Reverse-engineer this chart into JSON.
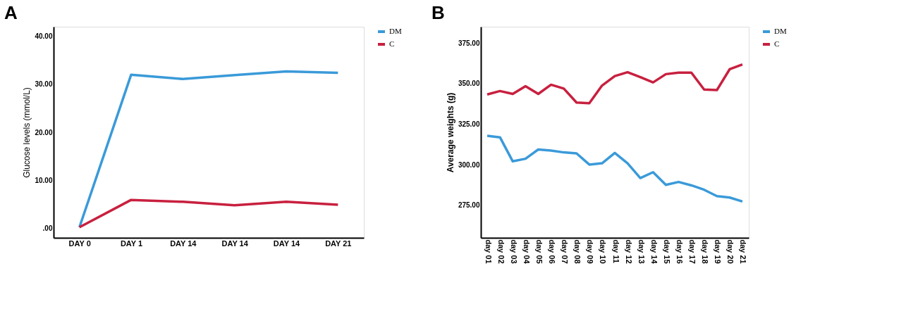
{
  "chart_data": [
    {
      "type": "line",
      "title": "A",
      "ylabel": "Glucose levels (mmol/L)",
      "categories": [
        "DAY 0",
        "DAY 1",
        "DAY 14",
        "DAY 14",
        "DAY 14",
        "DAY 21"
      ],
      "series": [
        {
          "name": "DM",
          "color": "#3a9ad9",
          "values": [
            0.2,
            32.0,
            31.1,
            31.9,
            32.7,
            32.4
          ]
        },
        {
          "name": "C",
          "color": "#c8203f",
          "values": [
            0.2,
            5.9,
            5.5,
            4.8,
            5.5,
            4.9
          ]
        }
      ],
      "ylim": [
        -2,
        42
      ],
      "yticks": [
        {
          "value": 0,
          "label": ".00"
        },
        {
          "value": 10,
          "label": "10.00"
        },
        {
          "value": 20,
          "label": "20.00"
        },
        {
          "value": 30,
          "label": "30.00"
        },
        {
          "value": 40,
          "label": "40.00"
        }
      ],
      "grid": false,
      "legend": "top right",
      "line_style": "solid"
    },
    {
      "type": "line",
      "title": "B",
      "ylabel": "Average weights (g)",
      "categories": [
        "day 01",
        "day 02",
        "day 03",
        "day 04",
        "day 05",
        "day 06",
        "day 07",
        "day 08",
        "day 09",
        "day 10",
        "day 11",
        "day 12",
        "day 13",
        "day 14",
        "day 15",
        "day 16",
        "day 17",
        "day 18",
        "day 19",
        "day 20",
        "day 21"
      ],
      "series": [
        {
          "name": "DM",
          "color": "#3a9ad9",
          "values": [
            317.8,
            316.9,
            302.1,
            303.7,
            309.4,
            308.7,
            307.6,
            307.0,
            300.1,
            300.9,
            307.3,
            300.9,
            291.8,
            295.4,
            287.6,
            289.4,
            287.3,
            284.6,
            280.7,
            279.8,
            277.4
          ]
        },
        {
          "name": "C",
          "color": "#c8203f",
          "values": [
            343.3,
            345.4,
            343.6,
            348.4,
            343.6,
            349.3,
            346.9,
            338.3,
            337.9,
            348.8,
            354.6,
            357.0,
            354.0,
            350.7,
            355.8,
            356.7,
            356.7,
            346.3,
            346.0,
            358.8,
            361.8
          ]
        }
      ],
      "ylim": [
        255,
        385
      ],
      "yticks": [
        {
          "value": 275,
          "label": "275.00"
        },
        {
          "value": 300,
          "label": "300.00"
        },
        {
          "value": 325,
          "label": "325.00"
        },
        {
          "value": 350,
          "label": "350.00"
        },
        {
          "value": 375,
          "label": "375.00"
        }
      ],
      "grid": false,
      "legend": "top right",
      "line_style": "solid"
    }
  ]
}
